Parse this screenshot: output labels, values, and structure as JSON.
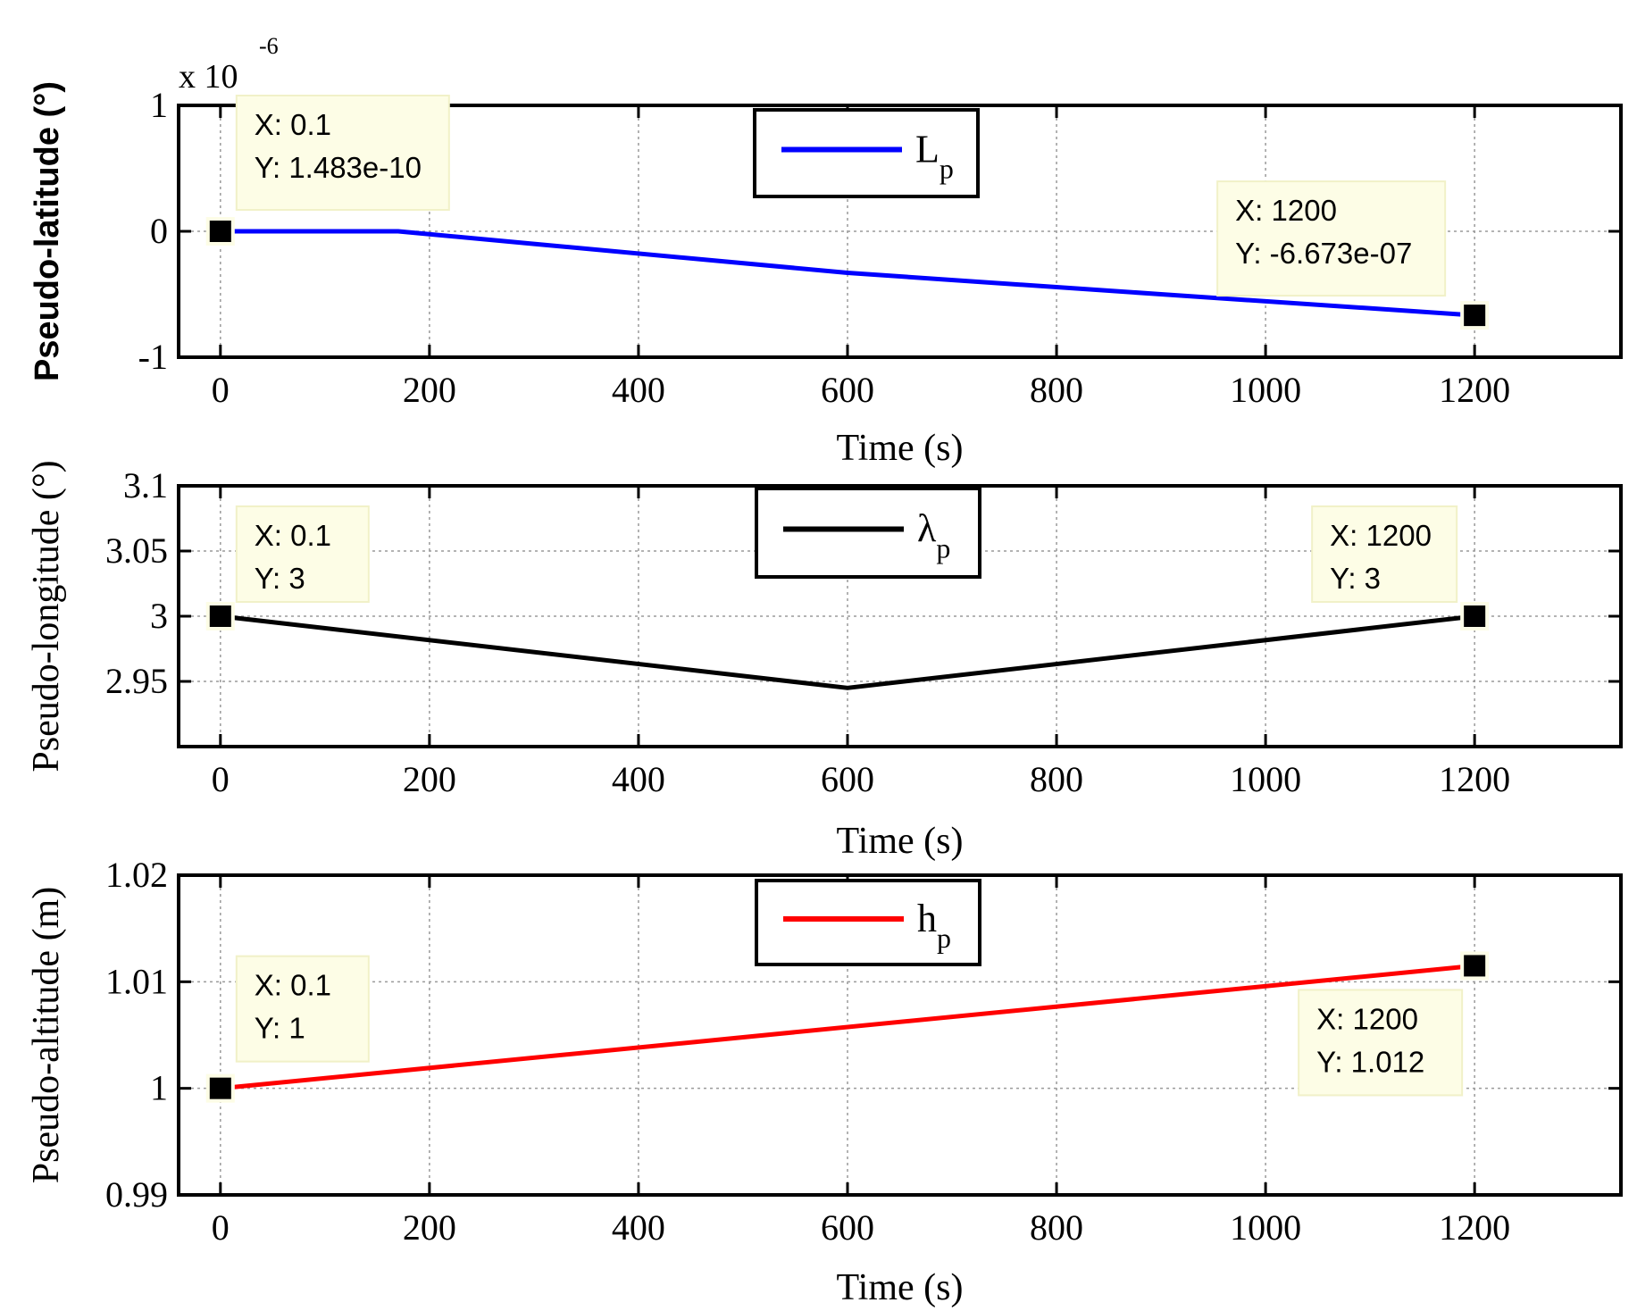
{
  "chart_data": [
    {
      "type": "line",
      "title": "",
      "xlabel": "Time (s)",
      "ylabel": "Pseudo-latitude (°)",
      "ylabel_bold": true,
      "y_multiplier": {
        "base": "x 10",
        "exponent": "-6"
      },
      "xlim": [
        -40,
        1340
      ],
      "ylim": [
        -1,
        1
      ],
      "xticks": [
        0,
        200,
        400,
        600,
        800,
        1000,
        1200
      ],
      "yticks": [
        -1,
        0,
        1
      ],
      "ytick_labels": [
        "-1",
        "0",
        "1"
      ],
      "grid": true,
      "legend": {
        "position": "top-center",
        "label": "L",
        "subscript": "p"
      },
      "series": [
        {
          "name": "L_p",
          "color": "#0000ff",
          "x": [
            0,
            170,
            300,
            600,
            900,
            1200
          ],
          "y": [
            0,
            0,
            -0.1,
            -0.33,
            -0.5,
            -0.6673
          ]
        }
      ],
      "datatips": [
        {
          "x": 0,
          "y": 0,
          "lines": [
            "X: 0.1",
            "Y: 1.483e-10"
          ],
          "box": "upper-right"
        },
        {
          "x": 1200,
          "y": -0.6673,
          "lines": [
            "X: 1200",
            "Y: -6.673e-07"
          ],
          "box": "upper-left"
        }
      ]
    },
    {
      "type": "line",
      "title": "",
      "xlabel": "Time (s)",
      "ylabel": "Pseudo-longitude (°)",
      "ylabel_bold": false,
      "xlim": [
        -40,
        1340
      ],
      "ylim": [
        2.9,
        3.1
      ],
      "xticks": [
        0,
        200,
        400,
        600,
        800,
        1000,
        1200
      ],
      "yticks": [
        2.95,
        3,
        3.05,
        3.1
      ],
      "ytick_labels": [
        "2.95",
        "3",
        "3.05",
        "3.1"
      ],
      "grid": true,
      "legend": {
        "position": "top-center",
        "label": "λ",
        "subscript": "p"
      },
      "series": [
        {
          "name": "λ_p",
          "color": "#000000",
          "x": [
            0,
            600,
            1200
          ],
          "y": [
            3,
            2.945,
            3
          ]
        }
      ],
      "datatips": [
        {
          "x": 0,
          "y": 3,
          "lines": [
            "X: 0.1",
            "Y: 3"
          ],
          "box": "upper-right"
        },
        {
          "x": 1200,
          "y": 3,
          "lines": [
            "X: 1200",
            "Y: 3"
          ],
          "box": "upper-left"
        }
      ]
    },
    {
      "type": "line",
      "title": "",
      "xlabel": "Time (s)",
      "ylabel": "Pseudo-altitude (m)",
      "ylabel_bold": false,
      "xlim": [
        -40,
        1340
      ],
      "ylim": [
        0.99,
        1.02
      ],
      "xticks": [
        0,
        200,
        400,
        600,
        800,
        1000,
        1200
      ],
      "yticks": [
        0.99,
        1,
        1.01,
        1.02
      ],
      "ytick_labels": [
        "0.99",
        "1",
        "1.01",
        "1.02"
      ],
      "grid": true,
      "legend": {
        "position": "top-center",
        "label": "h",
        "subscript": "p"
      },
      "series": [
        {
          "name": "h_p",
          "color": "#ff0000",
          "x": [
            0,
            1200
          ],
          "y": [
            1,
            1.0115
          ]
        }
      ],
      "datatips": [
        {
          "x": 0,
          "y": 1,
          "lines": [
            "X: 0.1",
            "Y: 1"
          ],
          "box": "upper-right"
        },
        {
          "x": 1200,
          "y": 1.0115,
          "lines": [
            "X: 1200",
            "Y: 1.012"
          ],
          "box": "lower-left"
        }
      ]
    }
  ]
}
